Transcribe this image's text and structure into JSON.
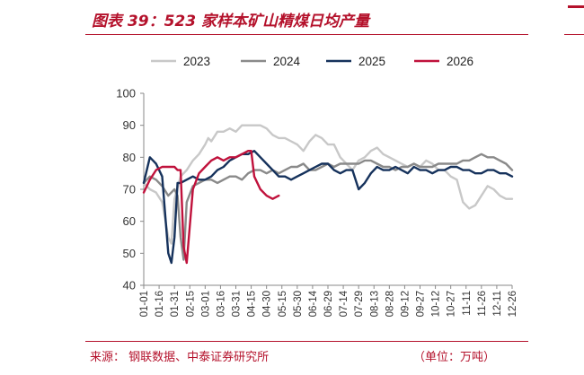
{
  "header": {
    "title": "图表 39：523 家样本矿山精煤日均产量"
  },
  "footer": {
    "source": "来源：  钢联数据、中泰证券研究所",
    "unit": "（单位：万吨）"
  },
  "colors": {
    "accent": "#b4112b",
    "s2023": "#c8c8c8",
    "s2024": "#8a8a8a",
    "s2025": "#16325c",
    "s2026": "#c0123c"
  },
  "chart_data": {
    "type": "line",
    "title": "523 家样本矿山精煤日均产量",
    "xlabel": "",
    "ylabel": "",
    "ylim": [
      40,
      100
    ],
    "yticks": [
      40,
      50,
      60,
      70,
      80,
      90,
      100
    ],
    "grid": false,
    "legend_position": "top",
    "xticks": [
      "01-01",
      "01-16",
      "01-31",
      "02-15",
      "03-01",
      "03-16",
      "03-31",
      "04-15",
      "04-30",
      "05-15",
      "05-30",
      "06-14",
      "06-29",
      "07-14",
      "07-29",
      "08-13",
      "08-28",
      "09-12",
      "09-27",
      "10-12",
      "10-27",
      "11-11",
      "11-26",
      "12-11",
      "12-26"
    ],
    "series": [
      {
        "name": "2023",
        "color": "#c8c8c8",
        "x": [
          0,
          2,
          4,
          6,
          8,
          9,
          10,
          12,
          14,
          16,
          18,
          20,
          21,
          22,
          24,
          26,
          28,
          30,
          32,
          34,
          36,
          38,
          40,
          42,
          44,
          46,
          48,
          50,
          52,
          54,
          56,
          58,
          60,
          62,
          64,
          66,
          68,
          70,
          72,
          74,
          76,
          78,
          80,
          82,
          84,
          86,
          88,
          90,
          92,
          94,
          96,
          98,
          100,
          102,
          104,
          106,
          108,
          110,
          112,
          114,
          116,
          118,
          120
        ],
        "values": [
          72,
          70,
          69,
          66,
          55,
          53,
          67,
          74,
          76,
          79,
          81,
          84,
          86,
          85,
          88,
          88,
          89,
          88,
          90,
          90,
          90,
          90,
          89,
          87,
          86,
          86,
          85,
          84,
          82,
          85,
          87,
          86,
          84,
          84,
          80,
          78,
          76,
          79,
          80,
          82,
          83,
          81,
          80,
          79,
          78,
          77,
          78,
          77,
          79,
          78,
          76,
          76,
          74,
          73,
          66,
          64,
          65,
          68,
          71,
          70,
          68,
          67,
          67
        ]
      },
      {
        "name": "2024",
        "color": "#8a8a8a",
        "x": [
          0,
          2,
          4,
          6,
          8,
          10,
          11,
          12,
          13,
          14,
          16,
          18,
          20,
          22,
          24,
          26,
          28,
          30,
          32,
          34,
          36,
          38,
          40,
          42,
          44,
          46,
          48,
          50,
          52,
          54,
          56,
          58,
          60,
          62,
          64,
          66,
          68,
          70,
          72,
          74,
          76,
          78,
          80,
          82,
          84,
          86,
          88,
          90,
          92,
          94,
          96,
          98,
          100,
          102,
          104,
          106,
          108,
          110,
          112,
          114,
          116,
          118,
          120
        ],
        "values": [
          72,
          74,
          73,
          71,
          68,
          70,
          68,
          55,
          48,
          66,
          71,
          72,
          73,
          73,
          72,
          73,
          74,
          74,
          73,
          75,
          76,
          76,
          75,
          76,
          75,
          76,
          77,
          77,
          78,
          76,
          76,
          77,
          78,
          77,
          78,
          78,
          78,
          78,
          79,
          79,
          78,
          77,
          77,
          76,
          77,
          77,
          78,
          77,
          77,
          77,
          78,
          78,
          78,
          78,
          79,
          79,
          80,
          81,
          80,
          80,
          79,
          78,
          76
        ]
      },
      {
        "name": "2025",
        "color": "#16325c",
        "x": [
          0,
          2,
          3,
          4,
          6,
          8,
          9,
          10,
          11,
          12,
          14,
          16,
          18,
          20,
          22,
          24,
          26,
          28,
          30,
          32,
          34,
          36,
          38,
          40,
          42,
          44,
          46,
          48,
          50,
          52,
          54,
          56,
          58,
          60,
          62,
          64,
          66,
          68,
          70,
          72,
          74,
          76,
          78,
          80,
          82,
          84,
          86,
          88,
          90,
          92,
          94,
          96,
          98,
          100,
          102,
          104,
          106,
          108,
          110,
          112,
          114,
          116,
          118,
          120
        ],
        "values": [
          72,
          80,
          79,
          78,
          74,
          50,
          47,
          55,
          72,
          72,
          73,
          74,
          73,
          73,
          74,
          76,
          77,
          79,
          80,
          81,
          81,
          82,
          80,
          78,
          76,
          74,
          74,
          73,
          74,
          75,
          76,
          77,
          78,
          78,
          76,
          75,
          76,
          76,
          70,
          72,
          75,
          77,
          76,
          76,
          77,
          76,
          75,
          77,
          76,
          76,
          75,
          76,
          76,
          77,
          77,
          76,
          76,
          75,
          75,
          76,
          76,
          75,
          75,
          74
        ]
      },
      {
        "name": "2026",
        "color": "#c0123c",
        "x": [
          0,
          2,
          4,
          6,
          8,
          10,
          11,
          12,
          13,
          14,
          16,
          18,
          20,
          22,
          24,
          26,
          28,
          30,
          32,
          34,
          35,
          36,
          38,
          40,
          42,
          44
        ],
        "values": [
          69,
          73,
          76,
          77,
          77,
          77,
          76,
          76,
          52,
          47,
          70,
          75,
          77,
          79,
          80,
          79,
          80,
          80,
          81,
          82,
          82,
          74,
          70,
          68,
          67,
          68
        ]
      }
    ]
  }
}
